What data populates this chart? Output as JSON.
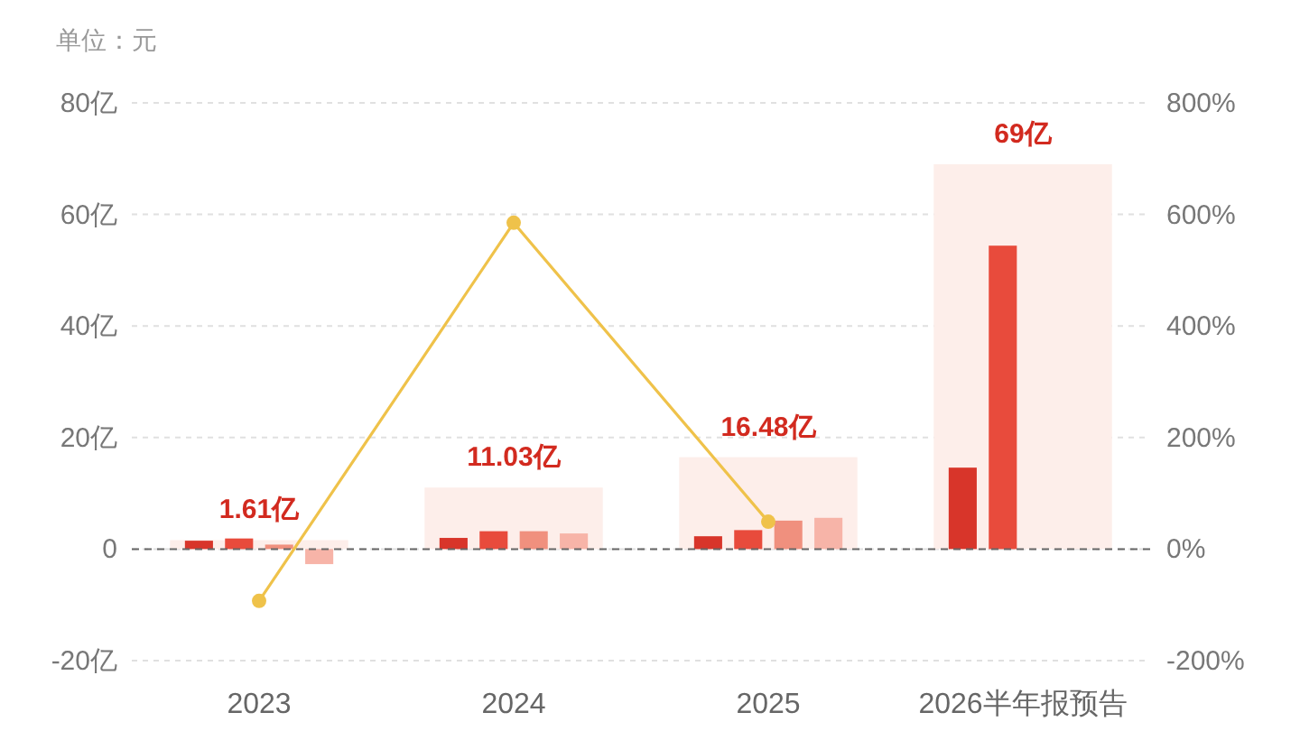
{
  "chart_data": {
    "type": "bar",
    "ylabel": "单位：元",
    "categories": [
      "2023",
      "2024",
      "2025",
      "2026半年报预告"
    ],
    "series": [
      {
        "type": "bar",
        "color": "#fdeeea",
        "values": [
          1.61,
          11.03,
          16.48,
          69
        ],
        "value_labels": [
          "1.61亿",
          "11.03亿",
          "16.48亿",
          "69亿"
        ]
      },
      {
        "color": "#d8352a",
        "values": [
          1.5,
          2.0,
          2.3,
          14.6
        ]
      },
      {
        "color": "#e84b3c",
        "values": [
          1.9,
          3.2,
          3.4,
          54.4
        ]
      },
      {
        "color": "#f0907e",
        "values": [
          0.8,
          3.2,
          5.1,
          null
        ]
      },
      {
        "color": "#f7b4a8",
        "values": [
          -2.7,
          2.8,
          5.6,
          null
        ]
      },
      {
        "type": "line",
        "axis": "y2",
        "color": "#efc24a",
        "values": [
          -93,
          585,
          49,
          null
        ]
      }
    ],
    "ylim": [
      -20,
      80
    ],
    "yticks": [
      {
        "value": -20,
        "label": "-20亿"
      },
      {
        "value": 0,
        "label": "0"
      },
      {
        "value": 20,
        "label": "20亿"
      },
      {
        "value": 40,
        "label": "40亿"
      },
      {
        "value": 60,
        "label": "60亿"
      },
      {
        "value": 80,
        "label": "80亿"
      }
    ],
    "y2lim": [
      -200,
      800
    ],
    "y2ticks": [
      {
        "value": -200,
        "label": "-200%"
      },
      {
        "value": 0,
        "label": "0%"
      },
      {
        "value": 200,
        "label": "200%"
      },
      {
        "value": 400,
        "label": "400%"
      },
      {
        "value": 600,
        "label": "600%"
      },
      {
        "value": 800,
        "label": "800%"
      }
    ],
    "ref_lines": [
      {
        "axis": "y",
        "value": 0,
        "color": "#666666",
        "line_style": "dashed"
      }
    ],
    "grid": "y",
    "marker": "circle"
  }
}
